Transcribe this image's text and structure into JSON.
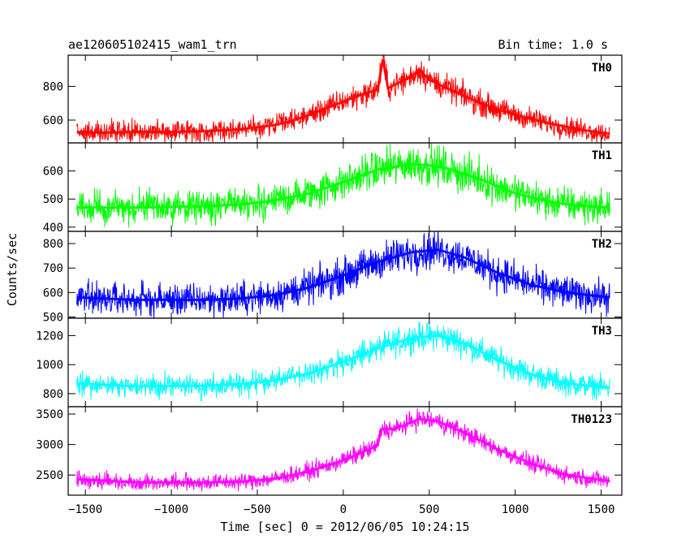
{
  "chart_data": {
    "type": "line",
    "title": "ae120605102415_wam1_trn",
    "subtitle": "Bin time: 1.0 s",
    "xlabel": "Time [sec] 0 = 2012/06/05 10:24:15",
    "ylabel": "Counts/sec",
    "xlim": [
      -1600,
      1620
    ],
    "x_ticks": [
      -1500,
      -1000,
      -500,
      0,
      500,
      1000,
      1500
    ],
    "x_tick_labels": [
      "−1500",
      "−1000",
      "−500",
      "0",
      "500",
      "1000",
      "1500"
    ],
    "grid": false,
    "panels": [
      {
        "name": "TH0",
        "color": "#ff0000",
        "ylim": [
          465,
          985
        ],
        "y_ticks": [
          600,
          800
        ],
        "y_tick_labels": [
          "600",
          "800"
        ],
        "x": [
          -1550,
          -1400,
          -1200,
          -1000,
          -800,
          -600,
          -400,
          -300,
          -200,
          -100,
          0,
          100,
          200,
          230,
          260,
          300,
          400,
          440,
          500,
          600,
          800,
          1000,
          1200,
          1400,
          1550
        ],
        "y": [
          530,
          525,
          530,
          530,
          535,
          545,
          570,
          595,
          630,
          670,
          710,
          750,
          780,
          960,
          790,
          810,
          860,
          900,
          840,
          790,
          700,
          630,
          580,
          540,
          520
        ]
      },
      {
        "name": "TH1",
        "color": "#00ff00",
        "ylim": [
          385,
          700
        ],
        "y_ticks": [
          400,
          500,
          600
        ],
        "y_tick_labels": [
          "400",
          "500",
          "600"
        ],
        "x": [
          -1550,
          -1200,
          -800,
          -600,
          -400,
          -200,
          0,
          200,
          400,
          500,
          600,
          800,
          1000,
          1200,
          1400,
          1550
        ],
        "y": [
          470,
          470,
          475,
          480,
          495,
          520,
          560,
          605,
          625,
          620,
          610,
          570,
          520,
          490,
          475,
          470
        ]
      },
      {
        "name": "TH2",
        "color": "#0000ff",
        "ylim": [
          495,
          850
        ],
        "y_ticks": [
          500,
          600,
          700,
          800
        ],
        "y_tick_labels": [
          "500",
          "600",
          "700",
          "800"
        ],
        "x": [
          -1550,
          -1200,
          -800,
          -600,
          -400,
          -200,
          0,
          200,
          400,
          550,
          700,
          900,
          1100,
          1300,
          1550
        ],
        "y": [
          580,
          570,
          570,
          575,
          590,
          620,
          670,
          725,
          765,
          775,
          745,
          680,
          630,
          600,
          580
        ]
      },
      {
        "name": "TH3",
        "color": "#00ffff",
        "ylim": [
          710,
          1320
        ],
        "y_ticks": [
          800,
          1000,
          1200
        ],
        "y_tick_labels": [
          "800",
          "1000",
          "1200"
        ],
        "x": [
          -1550,
          -1200,
          -800,
          -600,
          -400,
          -200,
          0,
          200,
          400,
          550,
          700,
          900,
          1100,
          1300,
          1550
        ],
        "y": [
          870,
          850,
          855,
          865,
          890,
          940,
          1020,
          1110,
          1185,
          1200,
          1150,
          1030,
          930,
          870,
          840
        ]
      },
      {
        "name": "TH0123",
        "color": "#ff00ff",
        "ylim": [
          2170,
          3620
        ],
        "y_ticks": [
          2500,
          3000,
          3500
        ],
        "y_tick_labels": [
          "2500",
          "3000",
          "3500"
        ],
        "x": [
          -1550,
          -1200,
          -800,
          -600,
          -400,
          -200,
          0,
          200,
          220,
          300,
          440,
          550,
          700,
          900,
          1100,
          1300,
          1550
        ],
        "y": [
          2430,
          2380,
          2380,
          2390,
          2440,
          2560,
          2740,
          2980,
          3250,
          3250,
          3420,
          3380,
          3200,
          2920,
          2680,
          2500,
          2400
        ]
      }
    ]
  }
}
